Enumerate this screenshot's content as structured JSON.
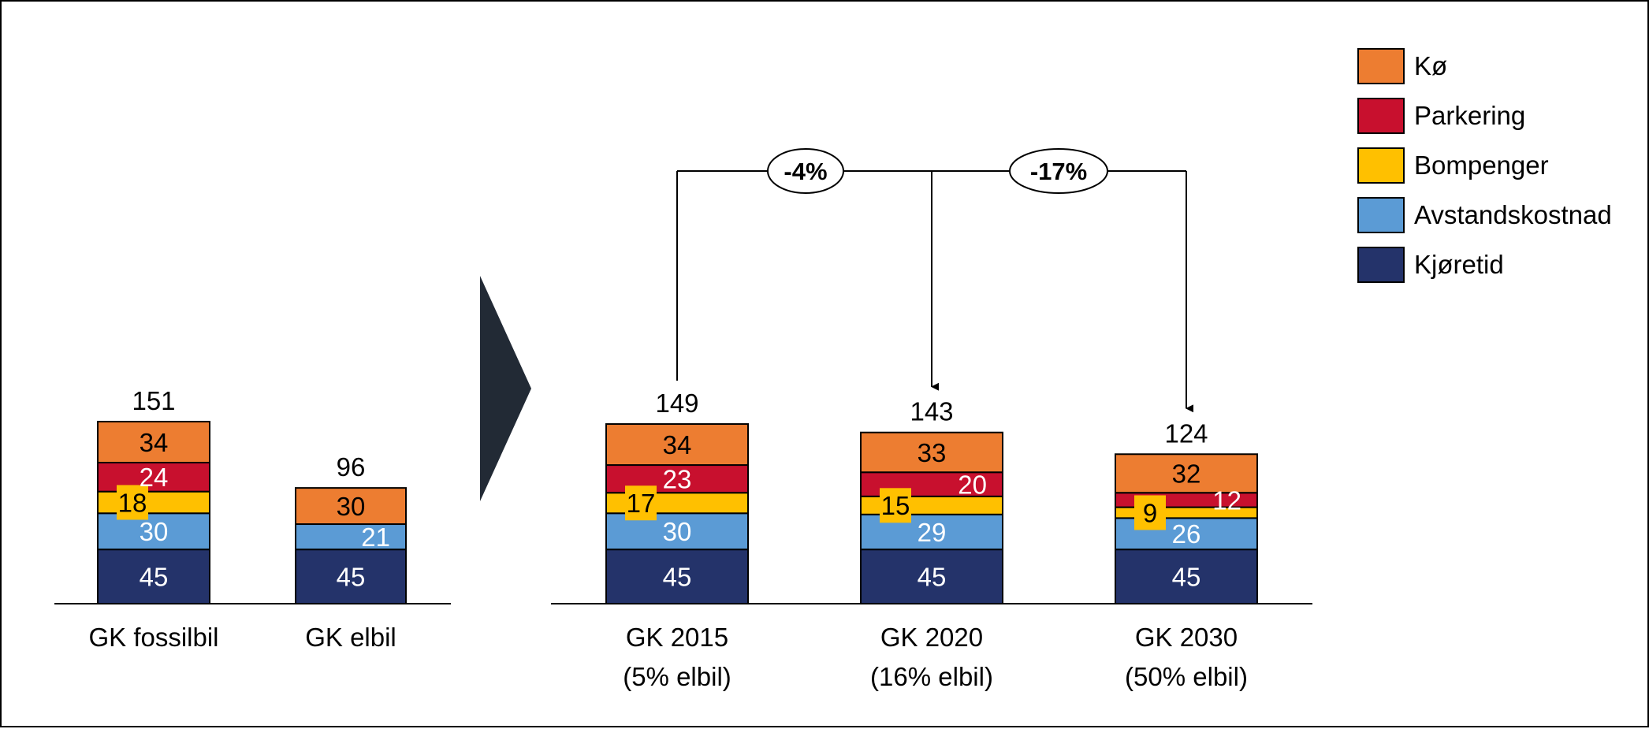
{
  "chart_data": {
    "type": "bar",
    "stacked": true,
    "title": "",
    "xlabel": "",
    "ylabel": "",
    "ylim": [
      0,
      160
    ],
    "grid": false,
    "legend_position": "top-right",
    "categories": [
      {
        "line1": "GK fossilbil",
        "line2": ""
      },
      {
        "line1": "GK elbil",
        "line2": ""
      },
      {
        "line1": "GK 2015",
        "line2": "(5% elbil)"
      },
      {
        "line1": "GK 2020",
        "line2": "(16% elbil)"
      },
      {
        "line1": "GK 2030",
        "line2": "(50% elbil)"
      }
    ],
    "groups": [
      [
        0,
        1
      ],
      [
        2,
        3,
        4
      ]
    ],
    "series": [
      {
        "name": "Kjøretid",
        "color": "#24336A",
        "label_color": "#ffffff",
        "values": [
          45,
          45,
          45,
          45,
          45
        ]
      },
      {
        "name": "Avstandskostnad",
        "color": "#5B9BD5",
        "label_color": "#ffffff",
        "values": [
          30,
          21,
          30,
          29,
          26
        ]
      },
      {
        "name": "Bompenger",
        "color": "#FFC000",
        "label_color": "#000000",
        "values": [
          18,
          null,
          17,
          15,
          9
        ]
      },
      {
        "name": "Parkering",
        "color": "#C8102E",
        "label_color": "#ffffff",
        "values": [
          24,
          null,
          23,
          20,
          12
        ]
      },
      {
        "name": "Kø",
        "color": "#ED7D31",
        "label_color": "#000000",
        "values": [
          34,
          30,
          34,
          33,
          32
        ]
      }
    ],
    "totals": [
      151,
      96,
      149,
      143,
      124
    ],
    "annotations": [
      {
        "from": 2,
        "to": 3,
        "text": "-4%"
      },
      {
        "from": 2,
        "to": 4,
        "text": "-17%"
      }
    ]
  }
}
